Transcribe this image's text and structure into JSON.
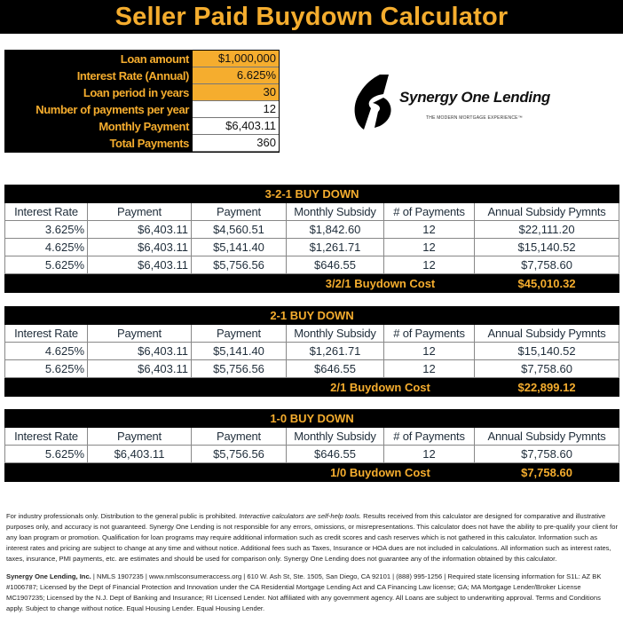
{
  "title": "Seller Paid Buydown Calculator",
  "inputs": [
    {
      "label": "Loan amount",
      "value": "$1,000,000",
      "highlight": true
    },
    {
      "label": "Interest Rate (Annual)",
      "value": "6.625%",
      "highlight": true
    },
    {
      "label": "Loan period in years",
      "value": "30",
      "highlight": true
    },
    {
      "label": "Number of payments per year",
      "value": "12",
      "highlight": false
    },
    {
      "label": "Monthly Payment",
      "value": "$6,403.11",
      "highlight": false
    },
    {
      "label": "Total Payments",
      "value": "360",
      "highlight": false
    }
  ],
  "logo": {
    "name": "Synergy One Lending",
    "tagline": "THE MODERN MORTGAGE EXPERIENCE™"
  },
  "columns": [
    "Interest Rate",
    "Payment",
    "Payment",
    "Monthly Subsidy",
    "# of Payments",
    "Annual Subsidy Pymnts"
  ],
  "tables": [
    {
      "title": "3-2-1 BUY DOWN",
      "rows": [
        [
          "3.625%",
          "$6,403.11",
          "$4,560.51",
          "$1,842.60",
          "12",
          "$22,111.20"
        ],
        [
          "4.625%",
          "$6,403.11",
          "$5,141.40",
          "$1,261.71",
          "12",
          "$15,140.52"
        ],
        [
          "5.625%",
          "$6,403.11",
          "$5,756.56",
          "$646.55",
          "12",
          "$7,758.60"
        ]
      ],
      "cost_label": "3/2/1 Buydown Cost",
      "cost_value": "$45,010.32"
    },
    {
      "title": "2-1 BUY DOWN",
      "rows": [
        [
          "4.625%",
          "$6,403.11",
          "$5,141.40",
          "$1,261.71",
          "12",
          "$15,140.52"
        ],
        [
          "5.625%",
          "$6,403.11",
          "$5,756.56",
          "$646.55",
          "12",
          "$7,758.60"
        ]
      ],
      "cost_label": "2/1 Buydown Cost",
      "cost_value": "$22,899.12"
    },
    {
      "title": "1-0 BUY DOWN",
      "rows": [
        [
          "5.625%",
          "$6,403.11",
          "$5,756.56",
          "$646.55",
          "12",
          "$7,758.60"
        ]
      ],
      "cost_label": "1/0 Buydown Cost",
      "cost_value": "$7,758.60"
    }
  ],
  "disclaimer": {
    "p1a": "For industry professionals only. Distribution to the general public is prohibited. ",
    "p1b": "Interactive calculators are self-help tools.",
    "p1c": "  Results received from this calculator are designed for comparative and illustrative purposes only, and accuracy is not guaranteed. Synergy One Lending is not responsible for any errors, omissions, or misrepresentations. This calculator does not have the ability to pre-qualify your client for any loan program or promotion. Qualification for loan programs may require additional information such as credit scores and cash reserves which is not gathered in this calculator. Information such as interest rates and pricing are subject to change at any time and without notice. Additional fees such as Taxes, Insurance or HOA dues are not included in calculations. All information such as interest rates, taxes, insurance, PMI payments, etc. are estimates and should be used for comparison only. Synergy One Lending does not guarantee any of the information obtained by this calculator.",
    "p2a": "Synergy One Lending, Inc.",
    "p2b": " | NMLS 1907235 | www.nmlsconsumeraccess.org | 610 W. Ash St, Ste. 1505, San Diego, CA 92101 | (888) 995-1256 | Required state licensing information for S1L: AZ BK #1006787; Licensed by the Dept of Financial Protection and Innovation under the CA Residential Mortgage Lending Act and CA Financing Law license; GA; MA Mortgage Lender/Broker License MC1907235; Licensed by the N.J. Dept of Banking and Insurance; RI Licensed Lender. Not affiliated with any government agency. All Loans are subject to underwriting approval. Terms and Conditions apply. Subject to change without notice. Equal Housing Lender. Equal Housing Lender."
  }
}
